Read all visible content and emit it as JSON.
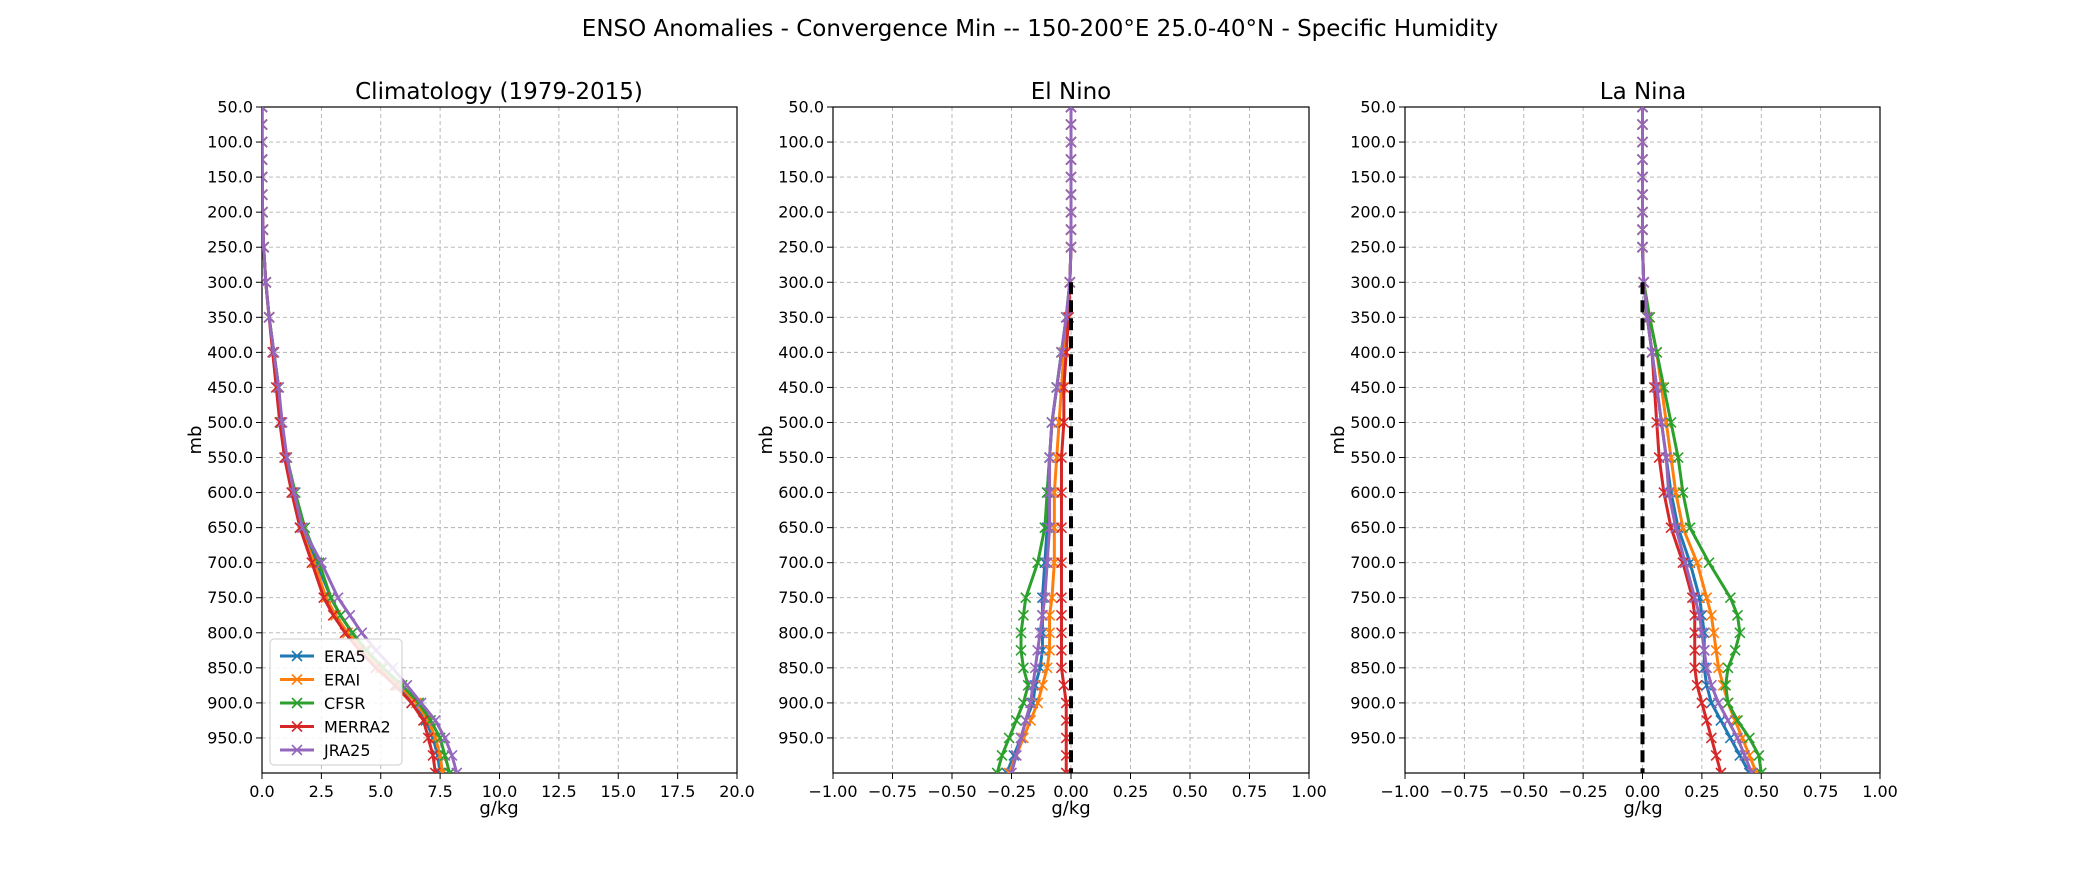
{
  "figure": {
    "suptitle": "ENSO Anomalies - Convergence Min -- 150-200°E 25.0-40°N - Specific Humidity"
  },
  "series_styles": [
    {
      "name": "ERA5",
      "color": "#1f77b4"
    },
    {
      "name": "ERAI",
      "color": "#ff7f0e"
    },
    {
      "name": "CFSR",
      "color": "#2ca02c"
    },
    {
      "name": "MERRA2",
      "color": "#d62728"
    },
    {
      "name": "JRA25",
      "color": "#9467bd"
    }
  ],
  "chart_data": [
    {
      "type": "line",
      "title": "Climatology (1979-2015)",
      "title_color": "#000000",
      "xlabel": "g/kg",
      "ylabel": "mb",
      "xlim": [
        0,
        20
      ],
      "ylim": [
        1000,
        50
      ],
      "y_inverted": true,
      "grid": true,
      "legend": "lower left",
      "zero_line": false,
      "xticks": [
        "0.0",
        "2.5",
        "5.0",
        "7.5",
        "10.0",
        "12.5",
        "15.0",
        "17.5",
        "20.0"
      ],
      "yticks": [
        "50.0",
        "100.0",
        "150.0",
        "200.0",
        "250.0",
        "300.0",
        "350.0",
        "400.0",
        "450.0",
        "500.0",
        "550.0",
        "600.0",
        "650.0",
        "700.0",
        "750.0",
        "800.0",
        "850.0",
        "900.0",
        "950.0"
      ],
      "pressure": [
        50,
        75,
        100,
        125,
        150,
        175,
        200,
        225,
        250,
        300,
        350,
        400,
        450,
        500,
        550,
        600,
        650,
        700,
        750,
        775,
        800,
        825,
        850,
        875,
        900,
        925,
        950,
        975,
        1000
      ],
      "series": [
        {
          "name": "ERA5",
          "values": [
            0.003,
            0.003,
            0.003,
            0.004,
            0.006,
            0.01,
            0.02,
            0.04,
            0.07,
            0.16,
            0.3,
            0.5,
            0.7,
            0.8,
            1.0,
            1.3,
            1.6,
            2.3,
            2.9,
            3.3,
            3.8,
            4.4,
            5.0,
            5.7,
            6.3,
            6.9,
            7.2,
            7.4,
            7.5
          ]
        },
        {
          "name": "ERAI",
          "values": [
            0.003,
            0.003,
            0.003,
            0.004,
            0.006,
            0.01,
            0.02,
            0.04,
            0.07,
            0.16,
            0.3,
            0.5,
            0.7,
            0.8,
            1.0,
            1.3,
            1.6,
            2.2,
            2.7,
            3.1,
            3.6,
            4.3,
            5.0,
            5.8,
            6.5,
            7.0,
            7.3,
            7.5,
            7.6
          ]
        },
        {
          "name": "CFSR",
          "values": [
            0.003,
            0.003,
            0.003,
            0.004,
            0.006,
            0.01,
            0.02,
            0.04,
            0.07,
            0.16,
            0.3,
            0.5,
            0.7,
            0.8,
            1.05,
            1.4,
            1.8,
            2.4,
            2.9,
            3.3,
            3.8,
            4.4,
            5.1,
            5.9,
            6.6,
            7.1,
            7.5,
            7.7,
            7.9
          ]
        },
        {
          "name": "MERRA2",
          "values": [
            0.003,
            0.003,
            0.003,
            0.004,
            0.006,
            0.01,
            0.02,
            0.04,
            0.07,
            0.16,
            0.3,
            0.45,
            0.6,
            0.75,
            0.95,
            1.25,
            1.6,
            2.1,
            2.6,
            3.0,
            3.5,
            4.1,
            4.8,
            5.6,
            6.3,
            6.8,
            7.0,
            7.2,
            7.3
          ]
        },
        {
          "name": "JRA25",
          "values": [
            0.003,
            0.003,
            0.003,
            0.004,
            0.006,
            0.01,
            0.02,
            0.04,
            0.07,
            0.16,
            0.3,
            0.5,
            0.7,
            0.85,
            1.05,
            1.35,
            1.7,
            2.5,
            3.2,
            3.7,
            4.2,
            4.8,
            5.5,
            6.1,
            6.7,
            7.3,
            7.7,
            8.0,
            8.2
          ]
        }
      ]
    },
    {
      "type": "line",
      "title": "El Nino",
      "title_color": "#ff0000",
      "xlabel": "g/kg",
      "ylabel": "mb",
      "xlim": [
        -1,
        1
      ],
      "ylim": [
        1000,
        50
      ],
      "y_inverted": true,
      "grid": true,
      "zero_line": true,
      "xticks": [
        "−1.00",
        "−0.75",
        "−0.50",
        "−0.25",
        "0.00",
        "0.25",
        "0.50",
        "0.75",
        "1.00"
      ],
      "yticks": [
        "50.0",
        "100.0",
        "150.0",
        "200.0",
        "250.0",
        "300.0",
        "350.0",
        "400.0",
        "450.0",
        "500.0",
        "550.0",
        "600.0",
        "650.0",
        "700.0",
        "750.0",
        "800.0",
        "850.0",
        "900.0",
        "950.0"
      ],
      "pressure": [
        50,
        75,
        100,
        125,
        150,
        175,
        200,
        225,
        250,
        300,
        350,
        400,
        450,
        500,
        550,
        600,
        650,
        700,
        750,
        775,
        800,
        825,
        850,
        875,
        900,
        925,
        950,
        975,
        1000
      ],
      "series": [
        {
          "name": "ERA5",
          "values": [
            0,
            0,
            0,
            0,
            0,
            0,
            0,
            0,
            0,
            -0.005,
            -0.02,
            -0.04,
            -0.06,
            -0.08,
            -0.09,
            -0.1,
            -0.1,
            -0.11,
            -0.12,
            -0.12,
            -0.12,
            -0.12,
            -0.13,
            -0.15,
            -0.16,
            -0.19,
            -0.21,
            -0.24,
            -0.27
          ]
        },
        {
          "name": "ERAI",
          "values": [
            0,
            0,
            0,
            0,
            0,
            0,
            0,
            0,
            0,
            -0.005,
            -0.02,
            -0.03,
            -0.04,
            -0.05,
            -0.06,
            -0.07,
            -0.07,
            -0.07,
            -0.08,
            -0.09,
            -0.09,
            -0.09,
            -0.1,
            -0.12,
            -0.14,
            -0.17,
            -0.2,
            -0.23,
            -0.26
          ]
        },
        {
          "name": "CFSR",
          "values": [
            0,
            0,
            0,
            0,
            0,
            0,
            0,
            0,
            0,
            -0.005,
            -0.02,
            -0.04,
            -0.06,
            -0.08,
            -0.09,
            -0.1,
            -0.11,
            -0.14,
            -0.19,
            -0.2,
            -0.21,
            -0.21,
            -0.2,
            -0.18,
            -0.2,
            -0.23,
            -0.26,
            -0.29,
            -0.31
          ]
        },
        {
          "name": "MERRA2",
          "values": [
            0,
            0,
            0,
            0,
            0,
            0,
            0,
            0,
            0,
            -0.005,
            -0.01,
            -0.02,
            -0.03,
            -0.03,
            -0.04,
            -0.04,
            -0.04,
            -0.04,
            -0.04,
            -0.04,
            -0.04,
            -0.04,
            -0.04,
            -0.03,
            -0.02,
            -0.02,
            -0.02,
            -0.02,
            -0.02
          ]
        },
        {
          "name": "JRA25",
          "values": [
            0,
            0,
            0,
            0,
            0,
            0,
            0,
            0,
            0,
            -0.005,
            -0.02,
            -0.04,
            -0.06,
            -0.08,
            -0.09,
            -0.09,
            -0.09,
            -0.1,
            -0.11,
            -0.12,
            -0.13,
            -0.14,
            -0.15,
            -0.16,
            -0.17,
            -0.19,
            -0.21,
            -0.23,
            -0.25
          ]
        }
      ]
    },
    {
      "type": "line",
      "title": "La Nina",
      "title_color": "#0000ff",
      "xlabel": "g/kg",
      "ylabel": "mb",
      "xlim": [
        -1,
        1
      ],
      "ylim": [
        1000,
        50
      ],
      "y_inverted": true,
      "grid": true,
      "zero_line": true,
      "xticks": [
        "−1.00",
        "−0.75",
        "−0.50",
        "−0.25",
        "0.00",
        "0.25",
        "0.50",
        "0.75",
        "1.00"
      ],
      "yticks": [
        "50.0",
        "100.0",
        "150.0",
        "200.0",
        "250.0",
        "300.0",
        "350.0",
        "400.0",
        "450.0",
        "500.0",
        "550.0",
        "600.0",
        "650.0",
        "700.0",
        "750.0",
        "800.0",
        "850.0",
        "900.0",
        "950.0"
      ],
      "pressure": [
        50,
        75,
        100,
        125,
        150,
        175,
        200,
        225,
        250,
        300,
        350,
        400,
        450,
        500,
        550,
        600,
        650,
        700,
        750,
        775,
        800,
        825,
        850,
        875,
        900,
        925,
        950,
        975,
        1000
      ],
      "series": [
        {
          "name": "ERA5",
          "values": [
            0,
            0,
            0,
            0,
            0,
            0,
            0,
            0,
            0,
            0.005,
            0.02,
            0.04,
            0.06,
            0.08,
            0.1,
            0.12,
            0.15,
            0.2,
            0.24,
            0.25,
            0.26,
            0.26,
            0.26,
            0.27,
            0.29,
            0.33,
            0.37,
            0.41,
            0.45
          ]
        },
        {
          "name": "ERAI",
          "values": [
            0,
            0,
            0,
            0,
            0,
            0,
            0,
            0,
            0,
            0.005,
            0.03,
            0.06,
            0.08,
            0.1,
            0.12,
            0.14,
            0.17,
            0.23,
            0.27,
            0.29,
            0.3,
            0.31,
            0.32,
            0.34,
            0.36,
            0.39,
            0.42,
            0.45,
            0.48
          ]
        },
        {
          "name": "CFSR",
          "values": [
            0,
            0,
            0,
            0,
            0,
            0,
            0,
            0,
            0,
            0.005,
            0.03,
            0.06,
            0.09,
            0.12,
            0.15,
            0.17,
            0.2,
            0.28,
            0.37,
            0.4,
            0.41,
            0.39,
            0.36,
            0.35,
            0.36,
            0.4,
            0.45,
            0.49,
            0.5
          ]
        },
        {
          "name": "MERRA2",
          "values": [
            0,
            0,
            0,
            0,
            0,
            0,
            0,
            0,
            0,
            0.005,
            0.02,
            0.04,
            0.05,
            0.06,
            0.07,
            0.09,
            0.12,
            0.17,
            0.21,
            0.22,
            0.22,
            0.22,
            0.22,
            0.23,
            0.25,
            0.27,
            0.29,
            0.31,
            0.33
          ]
        },
        {
          "name": "JRA25",
          "values": [
            0,
            0,
            0,
            0,
            0,
            0,
            0,
            0,
            0,
            0.005,
            0.02,
            0.04,
            0.06,
            0.08,
            0.1,
            0.11,
            0.14,
            0.18,
            0.22,
            0.24,
            0.25,
            0.26,
            0.27,
            0.29,
            0.32,
            0.36,
            0.4,
            0.43,
            0.46
          ]
        }
      ]
    }
  ]
}
